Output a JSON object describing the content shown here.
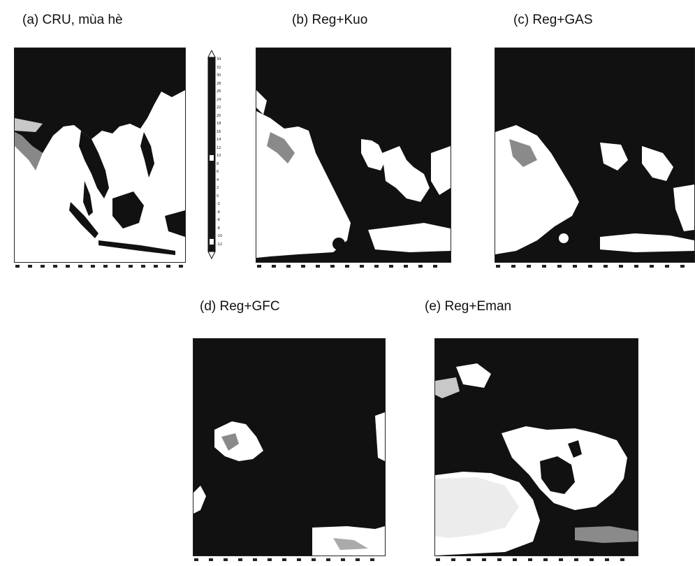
{
  "panels": {
    "a": {
      "title": "(a) CRU, mùa hè"
    },
    "b": {
      "title": "(b) Reg+Kuo"
    },
    "c": {
      "title": "(c) Reg+GAS"
    },
    "d": {
      "title": "(d) Reg+GFC"
    },
    "e": {
      "title": "(e) Reg+Eman"
    }
  },
  "colorbar": {
    "ticks": [
      "34",
      "32",
      "30",
      "28",
      "26",
      "24",
      "22",
      "20",
      "18",
      "16",
      "14",
      "12",
      "10",
      "8",
      "6",
      "4",
      "2",
      "0",
      "-2",
      "-4",
      "-6",
      "-8",
      "-10",
      "-12"
    ]
  },
  "colors": {
    "land_dark": "#111111",
    "sea_light": "#ffffff",
    "mid_gray": "#8a8a8a"
  }
}
